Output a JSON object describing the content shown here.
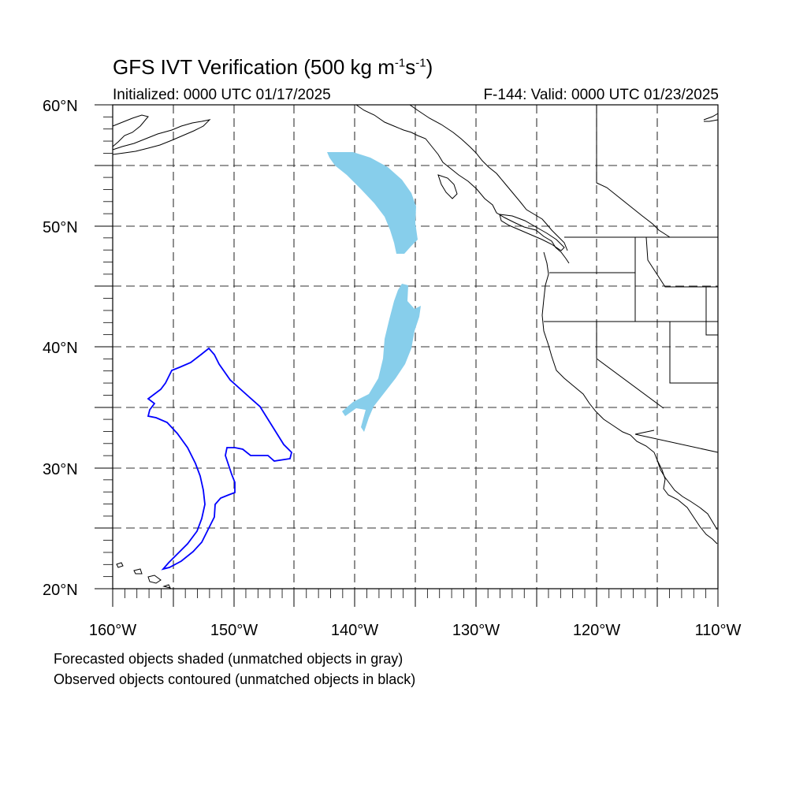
{
  "title_main": "GFS IVT Verification (500 kg m",
  "title_sup1": "-1",
  "title_mid": "s",
  "title_sup2": "-1",
  "title_end": ")",
  "initialized": "Initialized: 0000 UTC 01/17/2025",
  "valid": "F-144: Valid: 0000 UTC 01/23/2025",
  "lat_labels": [
    "60°N",
    "50°N",
    "40°N",
    "30°N",
    "20°N"
  ],
  "lon_labels": [
    "160°W",
    "150°W",
    "140°W",
    "130°W",
    "120°W",
    "110°W"
  ],
  "notes": [
    "Forecasted objects shaded (unmatched objects in gray)",
    "Observed objects contoured (unmatched objects in black)"
  ],
  "colors": {
    "forecast_fill": "#87ceeb",
    "observed_contour": "#0000ff",
    "coastline": "#000000",
    "grid": "#333333"
  },
  "map_extent": {
    "lon": [
      -160,
      -110
    ],
    "lat": [
      20,
      60
    ]
  }
}
